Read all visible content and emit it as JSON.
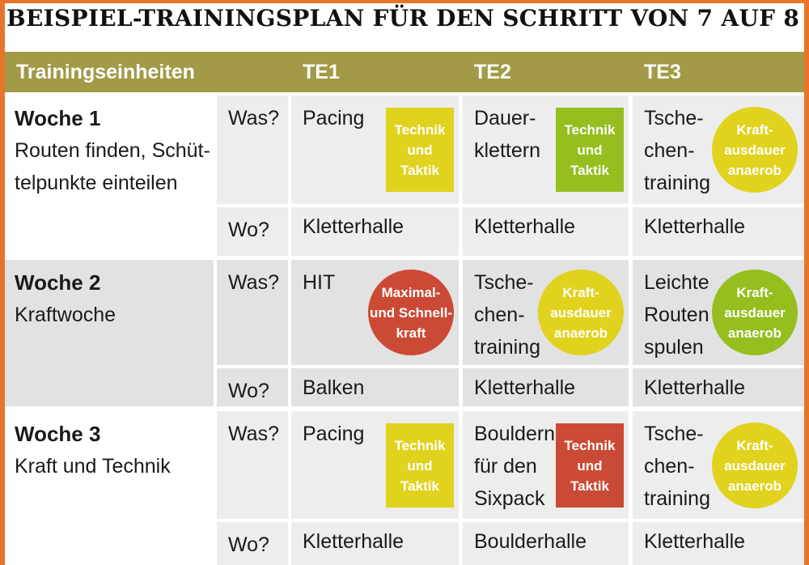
{
  "title": "BEISPIEL-TRAININGSPLAN FÜR DEN SCHRITT VON 7 AUF 8",
  "header": [
    "Trainingseinheiten",
    "TE1",
    "TE2",
    "TE3"
  ],
  "weeks": [
    {
      "label": "Woche 1",
      "desc": "Routen finden, Schüt-\ntelpunkte einteilen",
      "was_label": "Was?",
      "wo_label": "Wo?",
      "was": [
        {
          "text": "Pacing",
          "badge": "Technik\nund\nTaktik",
          "badge_color": "#e1d21e",
          "shape": "square"
        },
        {
          "text": "Dauer-\nklettern",
          "badge": "Technik\nund\nTaktik",
          "badge_color": "#95be1e",
          "shape": "square"
        },
        {
          "text": "Tsche-\nchen-\ntraining",
          "badge": "Kraft-\nausdauer\nanaerob",
          "badge_color": "#e1d21e",
          "shape": "circle"
        }
      ],
      "wo": [
        "Kletterhalle",
        "Kletterhalle",
        "Kletterhalle"
      ]
    },
    {
      "label": "Woche 2",
      "desc": "Kraftwoche",
      "was_label": "Was?",
      "wo_label": "Wo?",
      "was": [
        {
          "text": "HIT",
          "badge": "Maximal-\nund Schnell-\nkraft",
          "badge_color": "#cb4a36",
          "shape": "circle"
        },
        {
          "text": "Tsche-\nchen-\ntraining",
          "badge": "Kraft-\nausdauer\nanaerob",
          "badge_color": "#e1d21e",
          "shape": "circle"
        },
        {
          "text": "Leichte\nRouten\nspulen",
          "badge": "Kraft-\nausdauer\nanaerob",
          "badge_color": "#95be1e",
          "shape": "circle"
        }
      ],
      "wo": [
        "Balken",
        "Kletterhalle",
        "Kletterhalle"
      ]
    },
    {
      "label": "Woche 3",
      "desc": "Kraft und Technik",
      "was_label": "Was?",
      "wo_label": "Wo?",
      "was": [
        {
          "text": "Pacing",
          "badge": "Technik\nund\nTaktik",
          "badge_color": "#e1d21e",
          "shape": "square"
        },
        {
          "text": "Bouldern\nfür den\nSixpack",
          "badge": "Technik\nund\nTaktik",
          "badge_color": "#cb4a36",
          "shape": "square"
        },
        {
          "text": "Tsche-\nchen-\ntraining",
          "badge": "Kraft-\nausdauer\nanaerob",
          "badge_color": "#e1d21e",
          "shape": "circle"
        }
      ],
      "wo": [
        "Kletterhalle",
        "Boulderhalle",
        "Kletterhalle"
      ]
    }
  ]
}
